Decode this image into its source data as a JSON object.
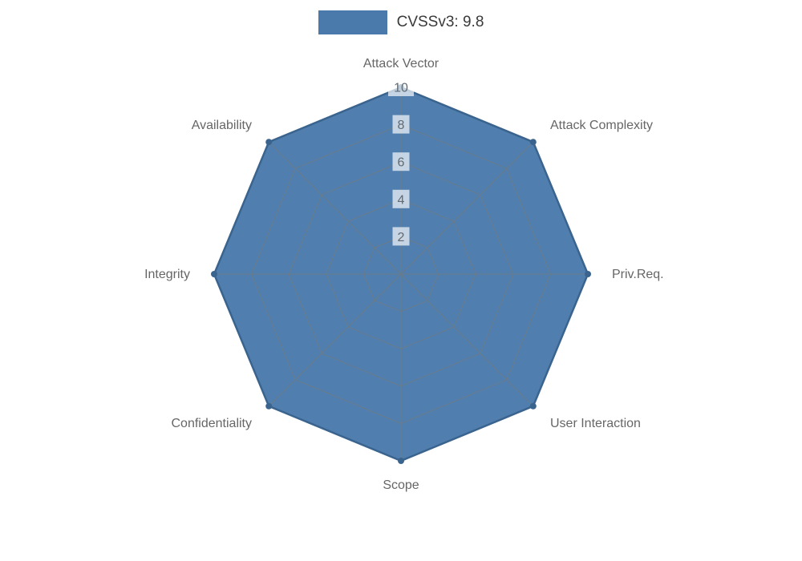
{
  "legend": {
    "label": "CVSSv3: 9.8"
  },
  "chart_data": {
    "type": "radar",
    "title": "CVSSv3: 9.8",
    "categories": [
      "Attack Vector",
      "Attack Complexity",
      "Priv.Req.",
      "User Interaction",
      "Scope",
      "Confidentiality",
      "Integrity",
      "Availability"
    ],
    "series": [
      {
        "name": "CVSSv3: 9.8",
        "values": [
          10,
          10,
          10,
          10,
          10,
          10,
          10,
          10
        ]
      }
    ],
    "rmax": 10,
    "ticks": [
      2,
      4,
      6,
      8,
      10
    ],
    "grid": true,
    "legend_position": "top",
    "colors": {
      "fill": "#4a7aab",
      "outline": "#3a648e",
      "grid": "#6e7b85",
      "tick_text": "#5f6a75",
      "tick_bg": "#ffffff",
      "label_text": "#666666"
    }
  }
}
